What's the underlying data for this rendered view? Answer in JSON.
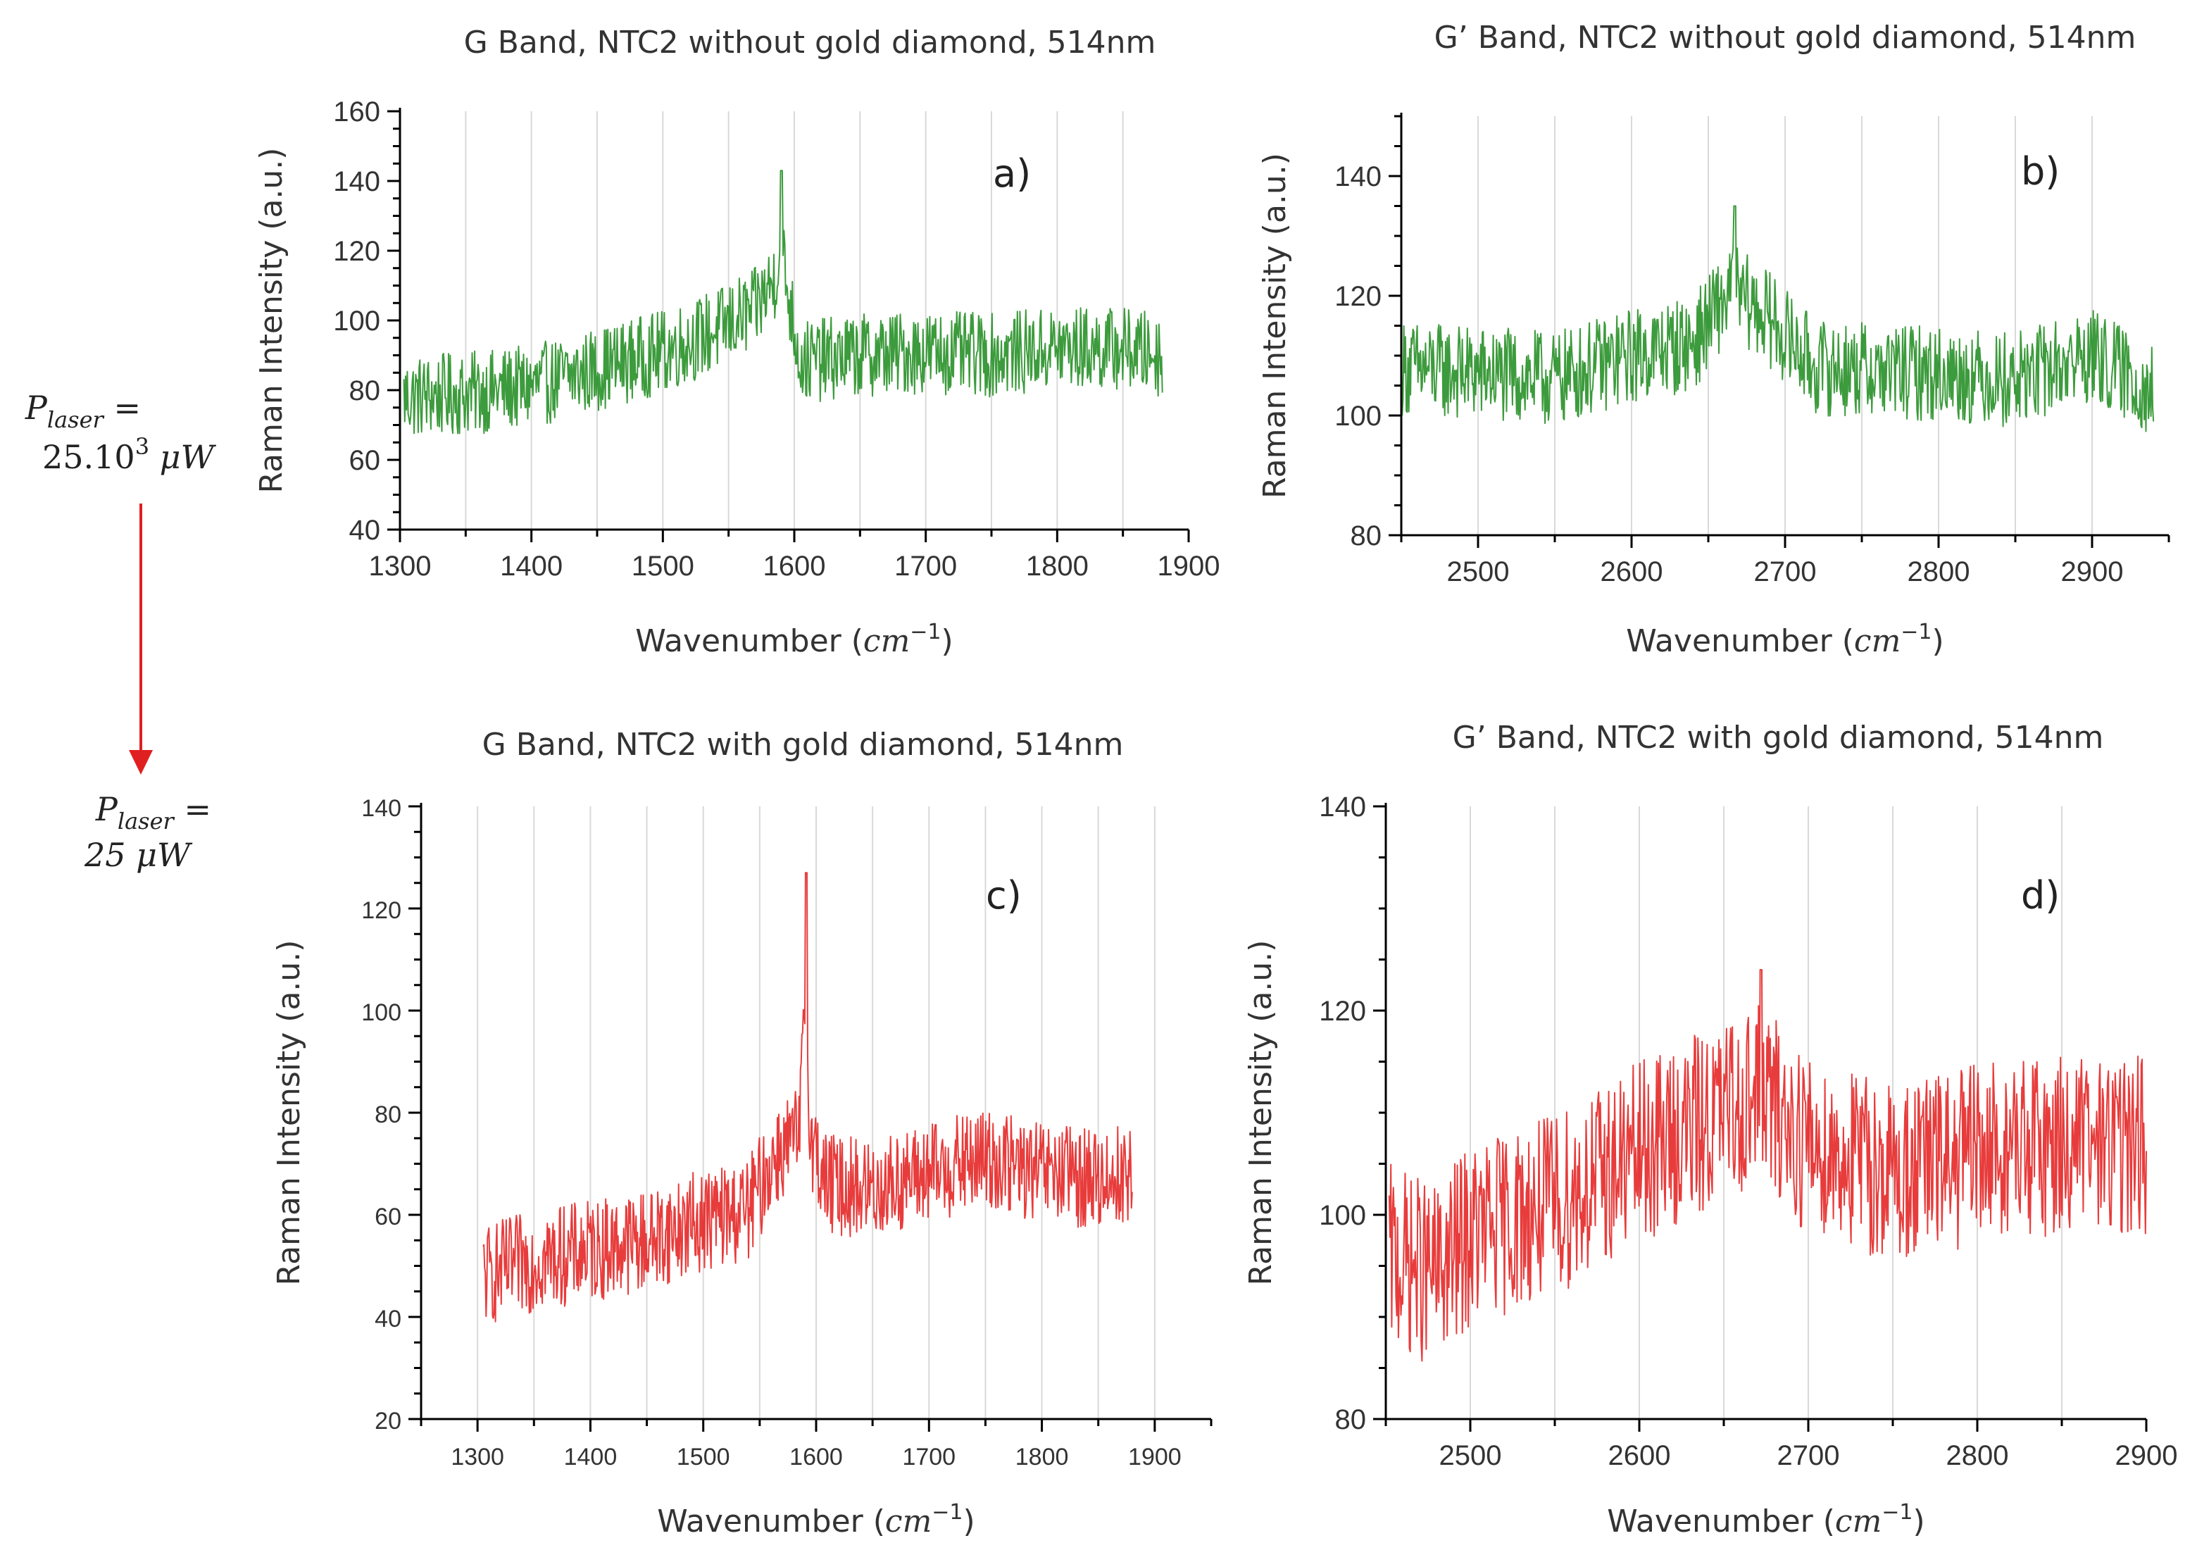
{
  "annotation": {
    "top_lines": [
      "P",
      "laser",
      " =",
      "25.10",
      "3",
      " μW"
    ],
    "bottom_lines": [
      "P",
      "laser",
      " =",
      "25 μW"
    ],
    "arrow_color": "#e02020"
  },
  "chart_data": [
    {
      "id": "a",
      "type": "line",
      "title": "G Band, NTC2 without gold diamond, 514nm",
      "panel_label": "a)",
      "xlabel": "Wavenumber (",
      "xlabel_unit": "cm",
      "xlabel_exp": "−1",
      "xlabel_close": ")",
      "ylabel": "Raman Intensity (a.u.)",
      "xlim": [
        1300,
        1900
      ],
      "ylim": [
        40,
        160
      ],
      "xticks": [
        1300,
        1400,
        1500,
        1600,
        1700,
        1800,
        1900
      ],
      "yticks": [
        40,
        60,
        80,
        100,
        120,
        140,
        160
      ],
      "color": "#1a8a1a",
      "series": [
        {
          "name": "NTC2 without gold diamond",
          "x_range": [
            1303,
            1880
          ],
          "baseline": [
            [
              1303,
              78
            ],
            [
              1350,
              79
            ],
            [
              1400,
              81
            ],
            [
              1450,
              86
            ],
            [
              1500,
              91
            ],
            [
              1540,
              97
            ],
            [
              1570,
              103
            ],
            [
              1585,
              112
            ],
            [
              1590,
              122
            ],
            [
              1595,
              108
            ],
            [
              1605,
              88
            ],
            [
              1650,
              90
            ],
            [
              1700,
              91
            ],
            [
              1750,
              90
            ],
            [
              1800,
              92
            ],
            [
              1850,
              92
            ],
            [
              1880,
              90
            ]
          ],
          "noise": 12,
          "peak": {
            "x": 1590,
            "y": 143
          }
        }
      ]
    },
    {
      "id": "b",
      "type": "line",
      "title": "G’ Band, NTC2 without gold diamond, 514nm",
      "panel_label": "b)",
      "xlabel": "Wavenumber (",
      "xlabel_unit": "cm",
      "xlabel_exp": "−1",
      "xlabel_close": ")",
      "ylabel": "Raman Intensity (a.u.)",
      "xlim": [
        2450,
        2950
      ],
      "ylim": [
        80,
        150
      ],
      "xticks": [
        2500,
        2600,
        2700,
        2800,
        2900
      ],
      "yticks": [
        80,
        100,
        120,
        140
      ],
      "color": "#1a8a1a",
      "series": [
        {
          "name": "NTC2 without gold diamond",
          "x_range": [
            2450,
            2940
          ],
          "baseline": [
            [
              2450,
              108
            ],
            [
              2500,
              107
            ],
            [
              2550,
              106
            ],
            [
              2600,
              110
            ],
            [
              2640,
              112
            ],
            [
              2665,
              121
            ],
            [
              2690,
              116
            ],
            [
              2720,
              108
            ],
            [
              2800,
              107
            ],
            [
              2850,
              106
            ],
            [
              2900,
              110
            ],
            [
              2940,
              104
            ]
          ],
          "noise": 8,
          "peak": {
            "x": 2667,
            "y": 135
          }
        }
      ]
    },
    {
      "id": "c",
      "type": "line",
      "title": "G Band, NTC2 with gold diamond, 514nm",
      "panel_label": "c)",
      "xlabel": "Wavenumber (",
      "xlabel_unit": "cm",
      "xlabel_exp": "−1",
      "xlabel_close": ")",
      "ylabel": "Raman Intensity (a.u.)",
      "xlim": [
        1250,
        1950
      ],
      "ylim": [
        20,
        140
      ],
      "xticks": [
        1300,
        1400,
        1500,
        1600,
        1700,
        1800,
        1900
      ],
      "yticks": [
        20,
        40,
        60,
        80,
        100,
        120,
        140
      ],
      "color": "#e41a1a",
      "series": [
        {
          "name": "NTC2 with gold diamond",
          "x_range": [
            1305,
            1880
          ],
          "baseline": [
            [
              1305,
              48
            ],
            [
              1350,
              51
            ],
            [
              1400,
              53
            ],
            [
              1450,
              55
            ],
            [
              1500,
              59
            ],
            [
              1540,
              61
            ],
            [
              1565,
              72
            ],
            [
              1585,
              75
            ],
            [
              1590,
              100
            ],
            [
              1596,
              74
            ],
            [
              1610,
              66
            ],
            [
              1650,
              65
            ],
            [
              1700,
              68
            ],
            [
              1750,
              71
            ],
            [
              1800,
              68
            ],
            [
              1850,
              67
            ],
            [
              1880,
              68
            ]
          ],
          "noise": 10,
          "peak": {
            "x": 1591,
            "y": 127
          }
        }
      ]
    },
    {
      "id": "d",
      "type": "line",
      "title": "G’ Band, NTC2 with gold diamond, 514nm",
      "panel_label": "d)",
      "xlabel": "Wavenumber (",
      "xlabel_unit": "cm",
      "xlabel_exp": "−1",
      "xlabel_close": ")",
      "ylabel": "Raman Intensity (a.u.)",
      "xlim": [
        2450,
        2900
      ],
      "ylim": [
        80,
        140
      ],
      "xticks": [
        2500,
        2600,
        2700,
        2800,
        2900
      ],
      "yticks": [
        80,
        100,
        120,
        140
      ],
      "color": "#e41a1a",
      "series": [
        {
          "name": "NTC2 with gold diamond",
          "x_range": [
            2452,
            2900
          ],
          "baseline": [
            [
              2452,
              96
            ],
            [
              2480,
              94
            ],
            [
              2500,
              98
            ],
            [
              2550,
              101
            ],
            [
              2600,
              106
            ],
            [
              2650,
              110
            ],
            [
              2670,
              112
            ],
            [
              2700,
              107
            ],
            [
              2750,
              104
            ],
            [
              2800,
              106
            ],
            [
              2850,
              107
            ],
            [
              2900,
              107
            ]
          ],
          "noise": 9,
          "peak": {
            "x": 2672,
            "y": 124
          }
        }
      ]
    }
  ]
}
